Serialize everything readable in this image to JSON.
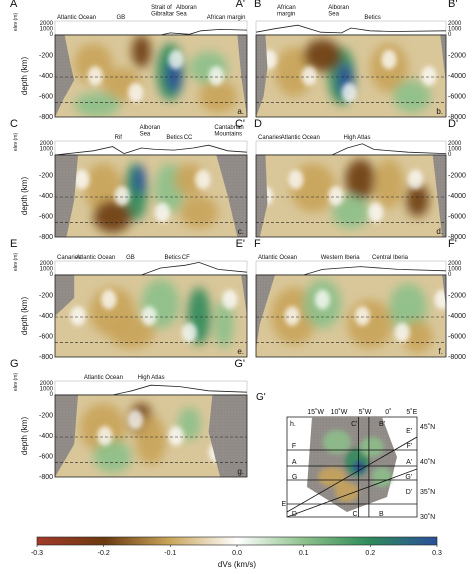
{
  "figure": {
    "panels": [
      {
        "id": "a",
        "start": "A",
        "end": "A'",
        "tag": "a.",
        "labels": [
          {
            "text": "Atlantic Ocean"
          },
          {
            "text": "GB"
          },
          {
            "text": "Strait of\nGibraltar"
          },
          {
            "text": "Alboran\nSea"
          },
          {
            "text": "African margin"
          }
        ]
      },
      {
        "id": "b",
        "start": "B",
        "end": "B'",
        "tag": "b.",
        "labels": [
          {
            "text": "African\nmargin"
          },
          {
            "text": "Alboran\nSea"
          },
          {
            "text": "Betics"
          }
        ]
      },
      {
        "id": "c",
        "start": "C",
        "end": "C'",
        "tag": "c.",
        "labels": [
          {
            "text": "Rif"
          },
          {
            "text": "Alboran\nSea"
          },
          {
            "text": "Betics"
          },
          {
            "text": "CC"
          },
          {
            "text": "Cantabrian\nMountains"
          }
        ]
      },
      {
        "id": "d",
        "start": "D",
        "end": "D'",
        "tag": "d.",
        "labels": [
          {
            "text": "Canaries"
          },
          {
            "text": "Atlantic Ocean"
          },
          {
            "text": "High Atlas"
          }
        ]
      },
      {
        "id": "e",
        "start": "E",
        "end": "E'",
        "tag": "e.",
        "labels": [
          {
            "text": "Canaries"
          },
          {
            "text": "Atlantic Ocean"
          },
          {
            "text": "GB"
          },
          {
            "text": "Betics"
          },
          {
            "text": "CF"
          }
        ]
      },
      {
        "id": "f",
        "start": "F",
        "end": "F'",
        "tag": "f.",
        "labels": [
          {
            "text": "Atlantic Ocean"
          },
          {
            "text": "Western Iberia"
          },
          {
            "text": "Central Iberia"
          }
        ]
      },
      {
        "id": "g",
        "start": "G",
        "end": "G'",
        "tag": "g.",
        "labels": [
          {
            "text": "Atlantic Ocean"
          },
          {
            "text": "High Atlas"
          }
        ]
      }
    ],
    "elev_axis_label": "elev (m)",
    "depth_axis_label": "depth (km)",
    "elev_ticks": [
      "2000",
      "1000",
      "0"
    ],
    "right_elev_ticks": [
      "2000",
      "1000",
      "0"
    ],
    "depth_ticks": [
      "0",
      "-200",
      "-400",
      "-600",
      "-800"
    ],
    "right_depth_ticks": [
      "0",
      "-2000",
      "-4000",
      "-6000",
      "-8000"
    ],
    "map": {
      "tag": "h.",
      "lon_labels": [
        "15˚W",
        "10˚W",
        "5˚W",
        "0˚",
        "5˚E"
      ],
      "lat_labels": [
        "45˚N",
        "40˚N",
        "35˚N",
        "30˚N"
      ],
      "line_labels": [
        "F",
        "F'",
        "A",
        "A'",
        "G",
        "G'",
        "C",
        "C'",
        "B",
        "B'",
        "D",
        "D'",
        "E",
        "E'"
      ]
    },
    "colorbar": {
      "ticks": [
        "-0.3",
        "-0.2",
        "-0.1",
        "0.0",
        "0.1",
        "0.2",
        "0.3"
      ],
      "label": "dVs (km/s)",
      "stops": [
        "#a23a2a",
        "#6b3a10",
        "#c9a45a",
        "#ffffff",
        "#8cc08a",
        "#2f8a5a",
        "#2a4f9a"
      ]
    }
  }
}
